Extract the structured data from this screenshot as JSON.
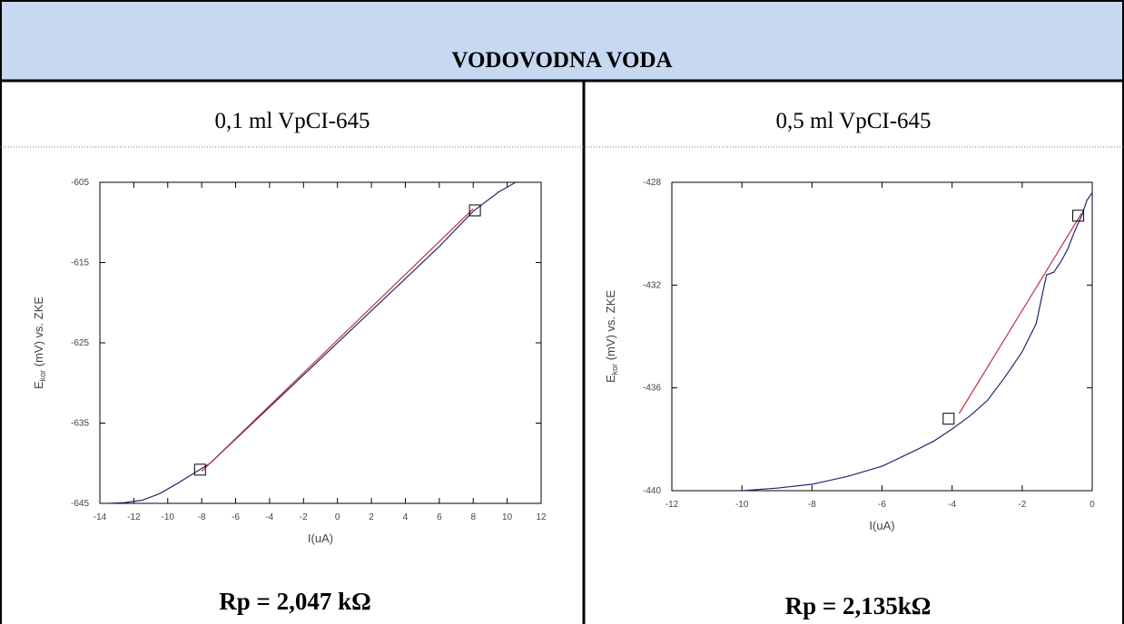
{
  "title": "VODOVODNA VODA",
  "columns": [
    {
      "label": "0,1 ml VpCI-645",
      "result": "Rp = 2,047 kΩ"
    },
    {
      "label": "0,5 ml VpCI-645",
      "result": "Rp = 2,135kΩ"
    }
  ],
  "chart_data": [
    {
      "type": "line",
      "xlabel": "I(uA)",
      "ylabel": {
        "symbol": "E",
        "subscript": "kor",
        "rest": " (mV) vs. ZKE"
      },
      "xlim": [
        -14,
        12
      ],
      "xticks": [
        -14,
        -12,
        -10,
        -8,
        -6,
        -4,
        -2,
        0,
        2,
        4,
        6,
        8,
        10,
        12
      ],
      "ylim": [
        -645,
        -605
      ],
      "yticks": [
        -645,
        -635,
        -625,
        -615,
        -605
      ],
      "series": [
        {
          "color": "#1f2a6e",
          "x": [
            -13.6,
            -12.5,
            -11.5,
            -10.5,
            -9.5,
            -8.5,
            -7.5,
            -6,
            -4,
            -2,
            0,
            2,
            4,
            6,
            8,
            9.5,
            10.5
          ],
          "values": [
            -645,
            -644.9,
            -644.6,
            -643.8,
            -642.6,
            -641.3,
            -640,
            -637,
            -633,
            -629,
            -625,
            -621,
            -617,
            -613,
            -608.6,
            -606.2,
            -605
          ]
        },
        {
          "color": "#c0304a",
          "x": [
            -8,
            8
          ],
          "values": [
            -641,
            -608.3
          ]
        }
      ],
      "markers": {
        "color": "#000000",
        "x": [
          -8.1,
          8.1
        ],
        "values": [
          -640.8,
          -608.5
        ]
      }
    },
    {
      "type": "line",
      "xlabel": "I(uA)",
      "ylabel": {
        "symbol": "E",
        "subscript": "kor",
        "rest": " (mV) vs. ZKE"
      },
      "xlim": [
        -12,
        0
      ],
      "xticks": [
        -12,
        -10,
        -8,
        -6,
        -4,
        -2,
        0
      ],
      "ylim": [
        -440,
        -428
      ],
      "yticks": [
        -440,
        -436,
        -432,
        -428
      ],
      "series": [
        {
          "color": "#1f2a6e",
          "x": [
            -10,
            -9,
            -8,
            -7,
            -6,
            -5,
            -4.5,
            -4,
            -3.5,
            -3,
            -2.5,
            -2,
            -1.6,
            -1.4,
            -1.3,
            -1.1,
            -0.9,
            -0.7,
            -0.5,
            -0.3,
            -0.15,
            0
          ],
          "values": [
            -440,
            -439.9,
            -439.75,
            -439.45,
            -439.05,
            -438.4,
            -438.05,
            -437.6,
            -437.1,
            -436.5,
            -435.6,
            -434.6,
            -433.5,
            -432.2,
            -431.6,
            -431.5,
            -431.1,
            -430.6,
            -429.9,
            -429.3,
            -428.7,
            -428.4
          ]
        },
        {
          "color": "#c0304a",
          "x": [
            -3.8,
            -0.3
          ],
          "values": [
            -437,
            -429.2
          ]
        }
      ],
      "markers": {
        "color": "#000000",
        "x": [
          -4.1,
          -0.4
        ],
        "values": [
          -437.2,
          -429.3
        ]
      }
    }
  ]
}
